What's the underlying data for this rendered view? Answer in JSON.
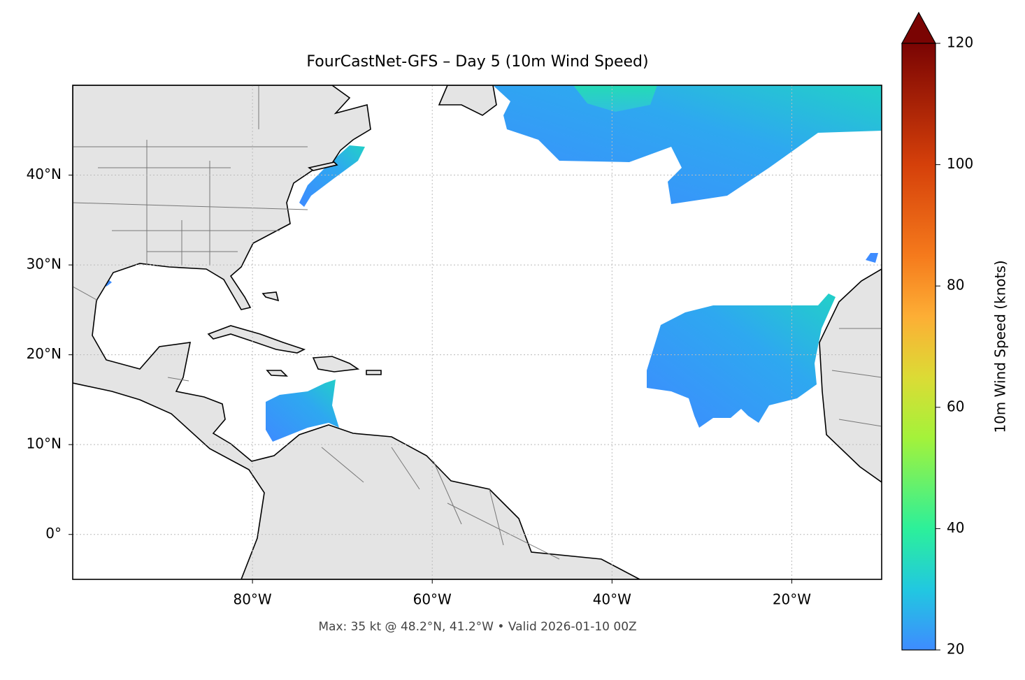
{
  "chart_data": {
    "type": "map",
    "title": "FourCastNet-GFS – Day 5 (10m Wind Speed)",
    "footer": "Max: 35 kt @ 48.2°N, 41.2°W • Valid 2026-01-10 00Z",
    "xlim": [
      -100,
      -10
    ],
    "ylim": [
      -5,
      50
    ],
    "xticks": [
      {
        "value": -80,
        "label": "80°W"
      },
      {
        "value": -60,
        "label": "60°W"
      },
      {
        "value": -40,
        "label": "40°W"
      },
      {
        "value": -20,
        "label": "20°W"
      }
    ],
    "yticks": [
      {
        "value": 0,
        "label": "0°"
      },
      {
        "value": 10,
        "label": "10°N"
      },
      {
        "value": 20,
        "label": "20°N"
      },
      {
        "value": 30,
        "label": "30°N"
      },
      {
        "value": 40,
        "label": "40°N"
      }
    ],
    "grid": true,
    "colorbar": {
      "label": "10m Wind Speed (knots)",
      "lim": [
        20,
        120
      ],
      "ticks": [
        20,
        40,
        60,
        80,
        100,
        120
      ]
    }
  }
}
